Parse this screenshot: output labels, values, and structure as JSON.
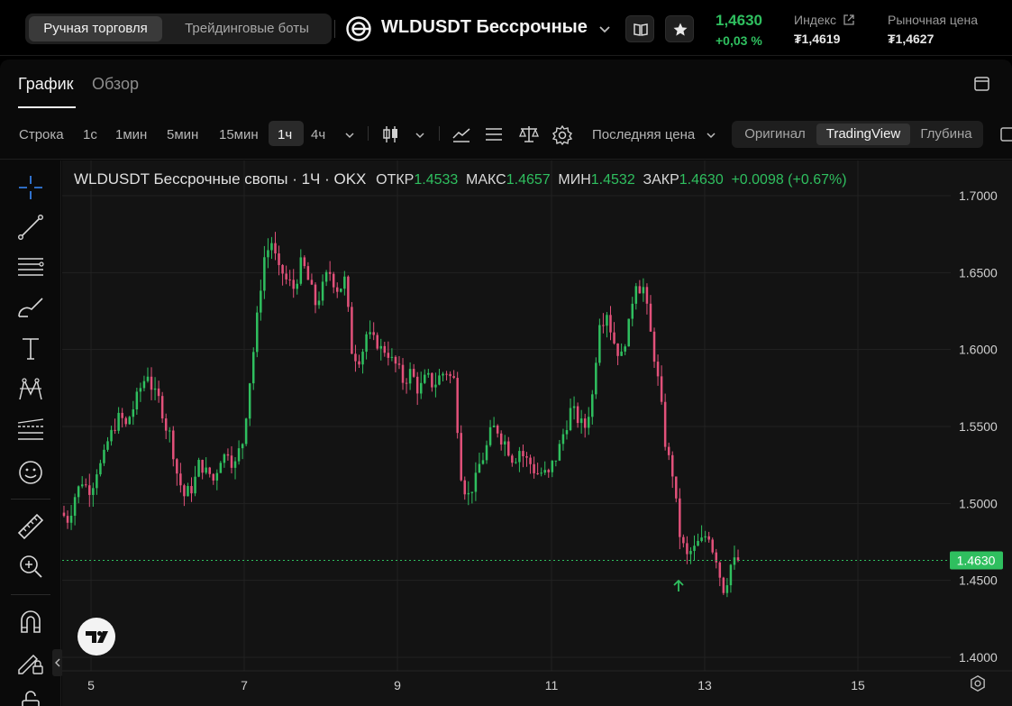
{
  "header": {
    "mode_tabs": [
      "Ручная торговля",
      "Трейдинговые боты"
    ],
    "pair_title": "WLDUSDT Бессрочные",
    "last_price": "1,4630",
    "last_change": "+0,03 %",
    "index_label": "Индекс",
    "index_value": "₮1,4619",
    "market_label": "Рыночная цена",
    "market_value": "₮1,4627"
  },
  "tabs": [
    "График",
    "Обзор"
  ],
  "toolbar": {
    "timeframes": [
      "Строка",
      "1с",
      "1мин",
      "5мин",
      "15мин",
      "1ч",
      "4ч"
    ],
    "active_timeframe": "1ч",
    "price_source": "Последняя цена",
    "views": [
      "Оригинал",
      "TradingView",
      "Глубина"
    ],
    "active_view": "TradingView"
  },
  "legend": {
    "symbol": "WLDUSDT Бессрочные свопы · 1Ч · OKX",
    "open_label": "ОТКР",
    "open": "1.4533",
    "high_label": "МАКС",
    "high": "1.4657",
    "low_label": "МИН",
    "low": "1.4532",
    "close_label": "ЗАКР",
    "close": "1.4630",
    "change": "+0.0098 (+0.67%)"
  },
  "tools": [
    "crosshair-icon",
    "trendline-icon",
    "fib-lines-icon",
    "brush-icon",
    "text-icon",
    "pattern-icon",
    "forecast-icon",
    "emoji-icon",
    "ruler-icon",
    "zoom-in-icon",
    "magnet-icon",
    "lock-drawing-icon",
    "unlock-icon"
  ],
  "colors": {
    "up": "#2fbf5f",
    "down": "#e2517a",
    "accent": "#2fbf5f"
  },
  "chart_data": {
    "type": "candlestick",
    "title": "WLDUSDT Бессрочные свопы · 1Ч · OKX",
    "x_ticks": [
      "5",
      "7",
      "9",
      "11",
      "13",
      "15"
    ],
    "y_ticks": [
      "1.7000",
      "1.6500",
      "1.6000",
      "1.5500",
      "1.5000",
      "1.4500",
      "1.4000"
    ],
    "ylim": [
      1.395,
      1.71
    ],
    "current_price": "1.4630",
    "series": [
      {
        "values": [
          [
            1.49,
            1.505,
            1.515,
            1.51,
            1.522,
            1.53,
            1.545,
            1.555,
            1.55,
            1.562,
            1.575,
            1.585,
            1.57,
            1.56,
            1.545,
            1.52,
            1.505,
            1.51,
            1.525,
            1.52,
            1.515,
            1.53,
            1.535,
            1.525,
            1.54,
            1.58,
            1.62,
            1.66,
            1.67,
            1.65,
            1.645,
            1.64,
            1.655,
            1.645,
            1.63,
            1.64,
            1.65,
            1.64,
            1.645,
            1.6,
            1.595,
            1.61,
            1.605,
            1.6,
            1.598,
            1.59,
            1.58,
            1.585,
            1.575,
            1.58,
            1.578,
            1.582,
            1.586,
            1.58,
            1.52,
            1.505,
            1.515,
            1.53,
            1.545,
            1.548,
            1.54,
            1.53,
            1.535,
            1.528,
            1.522,
            1.52,
            1.518,
            1.53,
            1.545,
            1.56,
            1.555,
            1.55,
            1.57,
            1.62,
            1.625,
            1.605,
            1.595,
            1.615,
            1.645,
            1.64,
            1.61,
            1.58,
            1.54,
            1.52,
            1.48,
            1.465,
            1.47,
            1.475,
            1.48,
            1.465,
            1.445,
            1.46,
            1.463
          ]
        ]
      }
    ]
  }
}
